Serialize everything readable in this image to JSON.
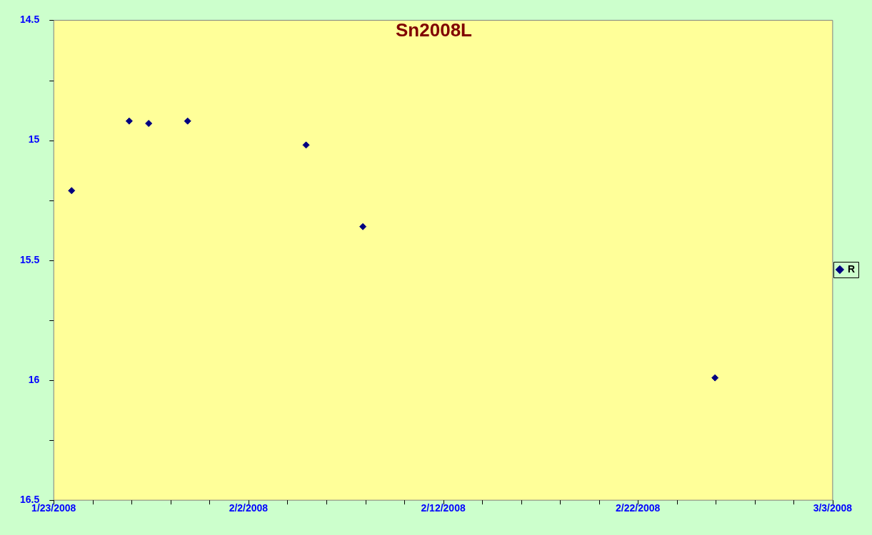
{
  "chart_data": {
    "type": "scatter",
    "title": "Sn2008L",
    "x": [
      "2008-01-23T22:00",
      "2008-01-26T21:00",
      "2008-01-27T21:00",
      "2008-01-29T21:00",
      "2008-02-04T23:00",
      "2008-02-07T21:00",
      "2008-02-25T23:00"
    ],
    "series": [
      {
        "name": "R",
        "color": "#000080",
        "values": [
          15.21,
          14.92,
          14.93,
          14.92,
          15.02,
          15.36,
          15.99
        ]
      }
    ],
    "xlim": [
      "2008-01-23",
      "2008-03-03"
    ],
    "xticks": [
      {
        "value": "2008-01-23",
        "label": "1/23/2008"
      },
      {
        "value": "2008-01-25",
        "label": null
      },
      {
        "value": "2008-01-27",
        "label": null
      },
      {
        "value": "2008-01-29",
        "label": null
      },
      {
        "value": "2008-01-31",
        "label": null
      },
      {
        "value": "2008-02-02",
        "label": "2/2/2008"
      },
      {
        "value": "2008-02-04",
        "label": null
      },
      {
        "value": "2008-02-06",
        "label": null
      },
      {
        "value": "2008-02-08",
        "label": null
      },
      {
        "value": "2008-02-10",
        "label": null
      },
      {
        "value": "2008-02-12",
        "label": "2/12/2008"
      },
      {
        "value": "2008-02-14",
        "label": null
      },
      {
        "value": "2008-02-16",
        "label": null
      },
      {
        "value": "2008-02-18",
        "label": null
      },
      {
        "value": "2008-02-20",
        "label": null
      },
      {
        "value": "2008-02-22",
        "label": "2/22/2008"
      },
      {
        "value": "2008-02-24",
        "label": null
      },
      {
        "value": "2008-02-26",
        "label": null
      },
      {
        "value": "2008-02-28",
        "label": null
      },
      {
        "value": "2008-03-01",
        "label": null
      },
      {
        "value": "2008-03-03",
        "label": "3/3/2008"
      }
    ],
    "ylim": [
      16.5,
      14.5
    ],
    "yticks": [
      14.5,
      {
        "value": 14.75,
        "label": null
      },
      15,
      {
        "value": 15.25,
        "label": null
      },
      15.5,
      {
        "value": 15.75,
        "label": null
      },
      16,
      {
        "value": 16.25,
        "label": null
      },
      16.5
    ],
    "grid": false,
    "legend": "right",
    "marker": "diamond"
  }
}
